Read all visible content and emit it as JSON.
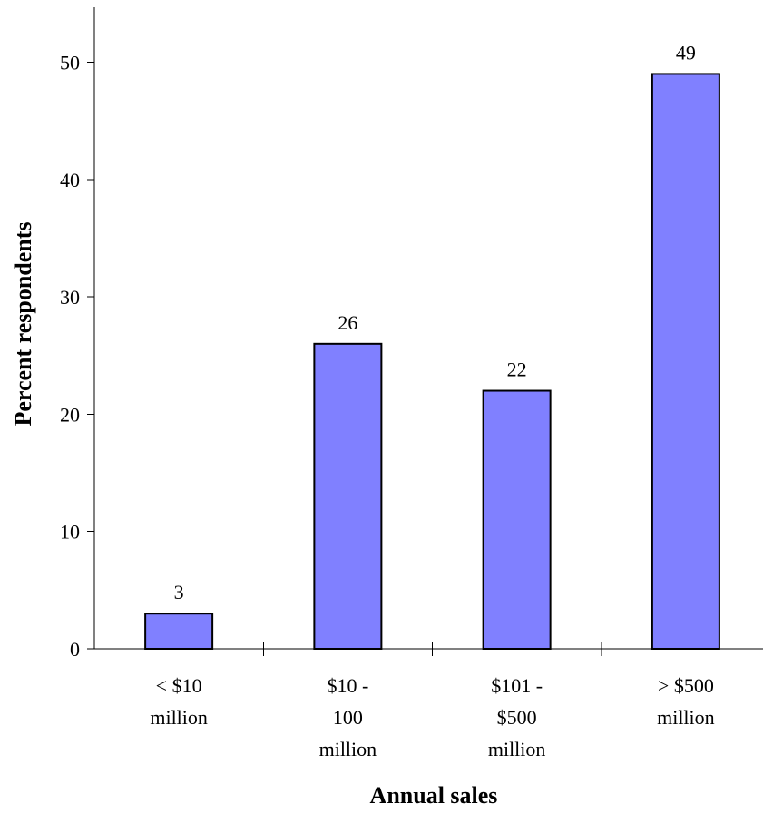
{
  "chart_data": {
    "type": "bar",
    "title": "",
    "xlabel": "Annual sales",
    "ylabel": "Percent respondents",
    "categories": [
      [
        "< $10",
        "million"
      ],
      [
        "$10 -",
        "100",
        "million"
      ],
      [
        "$101 -",
        "$500",
        "million"
      ],
      [
        "> $500",
        "million"
      ]
    ],
    "values": [
      3,
      26,
      22,
      49
    ],
    "data_labels": [
      "3",
      "26",
      "22",
      "49"
    ],
    "ylim": [
      0,
      55
    ],
    "yticks": [
      0,
      10,
      20,
      30,
      40,
      50
    ],
    "grid": false,
    "legend": "none",
    "colors": {
      "bar_fill": "#8080ff",
      "bar_stroke": "#000000",
      "axis": "#000000",
      "background": "#ffffff"
    }
  }
}
